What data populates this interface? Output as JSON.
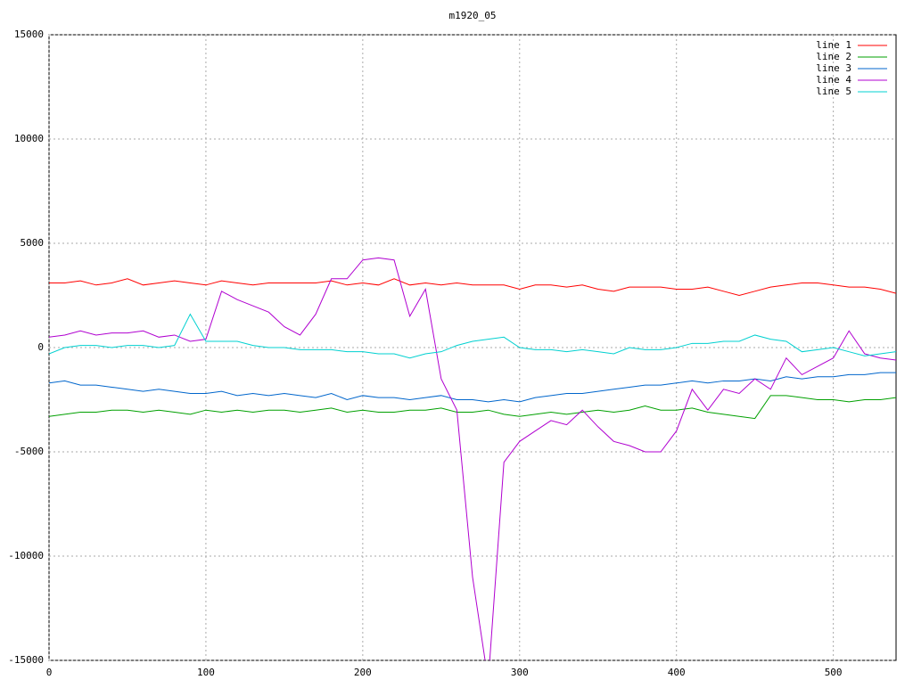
{
  "chart_data": {
    "type": "line",
    "title": "m1920_05",
    "x": [
      0,
      10,
      20,
      30,
      40,
      50,
      60,
      70,
      80,
      90,
      100,
      110,
      120,
      130,
      140,
      150,
      160,
      170,
      180,
      190,
      200,
      210,
      220,
      230,
      240,
      250,
      260,
      270,
      280,
      290,
      300,
      310,
      320,
      330,
      340,
      350,
      360,
      370,
      380,
      390,
      400,
      410,
      420,
      430,
      440,
      450,
      460,
      470,
      480,
      490,
      500,
      510,
      520,
      530,
      540
    ],
    "xlim": [
      0,
      540
    ],
    "xticks": [
      0,
      100,
      200,
      300,
      400,
      500
    ],
    "ylim": [
      -15000,
      15000
    ],
    "yticks": [
      -15000,
      -10000,
      -5000,
      0,
      5000,
      10000,
      15000
    ],
    "grid": true,
    "legend": "top-right",
    "series": [
      {
        "name": "line 1",
        "color": "#ff0000",
        "values": [
          3100,
          3100,
          3200,
          3000,
          3100,
          3300,
          3000,
          3100,
          3200,
          3100,
          3000,
          3200,
          3100,
          3000,
          3100,
          3100,
          3100,
          3100,
          3200,
          3000,
          3100,
          3000,
          3300,
          3000,
          3100,
          3000,
          3100,
          3000,
          3000,
          3000,
          2800,
          3000,
          3000,
          2900,
          3000,
          2800,
          2700,
          2900,
          2900,
          2900,
          2800,
          2800,
          2900,
          2700,
          2500,
          2700,
          2900,
          3000,
          3100,
          3100,
          3000,
          2900,
          2900,
          2800,
          2600
        ]
      },
      {
        "name": "line 2",
        "color": "#00a000",
        "values": [
          -3300,
          -3200,
          -3100,
          -3100,
          -3000,
          -3000,
          -3100,
          -3000,
          -3100,
          -3200,
          -3000,
          -3100,
          -3000,
          -3100,
          -3000,
          -3000,
          -3100,
          -3000,
          -2900,
          -3100,
          -3000,
          -3100,
          -3100,
          -3000,
          -3000,
          -2900,
          -3100,
          -3100,
          -3000,
          -3200,
          -3300,
          -3200,
          -3100,
          -3200,
          -3100,
          -3000,
          -3100,
          -3000,
          -2800,
          -3000,
          -3000,
          -2900,
          -3100,
          -3200,
          -3300,
          -3400,
          -2300,
          -2300,
          -2400,
          -2500,
          -2500,
          -2600,
          -2500,
          -2500,
          -2400
        ]
      },
      {
        "name": "line 3",
        "color": "#0066cc",
        "values": [
          -1700,
          -1600,
          -1800,
          -1800,
          -1900,
          -2000,
          -2100,
          -2000,
          -2100,
          -2200,
          -2200,
          -2100,
          -2300,
          -2200,
          -2300,
          -2200,
          -2300,
          -2400,
          -2200,
          -2500,
          -2300,
          -2400,
          -2400,
          -2500,
          -2400,
          -2300,
          -2500,
          -2500,
          -2600,
          -2500,
          -2600,
          -2400,
          -2300,
          -2200,
          -2200,
          -2100,
          -2000,
          -1900,
          -1800,
          -1800,
          -1700,
          -1600,
          -1700,
          -1600,
          -1600,
          -1500,
          -1600,
          -1400,
          -1500,
          -1400,
          -1400,
          -1300,
          -1300,
          -1200,
          -1200
        ]
      },
      {
        "name": "line 4",
        "color": "#b000d0",
        "values": [
          500,
          600,
          800,
          600,
          700,
          700,
          800,
          500,
          600,
          300,
          400,
          2700,
          2300,
          2000,
          1700,
          1000,
          600,
          1600,
          3300,
          3300,
          4200,
          4300,
          4200,
          1500,
          2800,
          -1500,
          -3000,
          -11000,
          -16000,
          -5500,
          -4500,
          -4000,
          -3500,
          -3700,
          -3000,
          -3800,
          -4500,
          -4700,
          -5000,
          -5000,
          -4000,
          -2000,
          -3000,
          -2000,
          -2200,
          -1500,
          -2000,
          -500,
          -1300,
          -900,
          -500,
          800,
          -300,
          -500,
          -600
        ]
      },
      {
        "name": "line 5",
        "color": "#00d0d0",
        "values": [
          -300,
          0,
          100,
          100,
          0,
          100,
          100,
          0,
          100,
          1600,
          300,
          300,
          300,
          100,
          0,
          0,
          -100,
          -100,
          -100,
          -200,
          -200,
          -300,
          -300,
          -500,
          -300,
          -200,
          100,
          300,
          400,
          500,
          0,
          -100,
          -100,
          -200,
          -100,
          -200,
          -300,
          0,
          -100,
          -100,
          0,
          200,
          200,
          300,
          300,
          600,
          400,
          300,
          -200,
          -100,
          0,
          -200,
          -400,
          -300,
          -200
        ]
      }
    ]
  }
}
